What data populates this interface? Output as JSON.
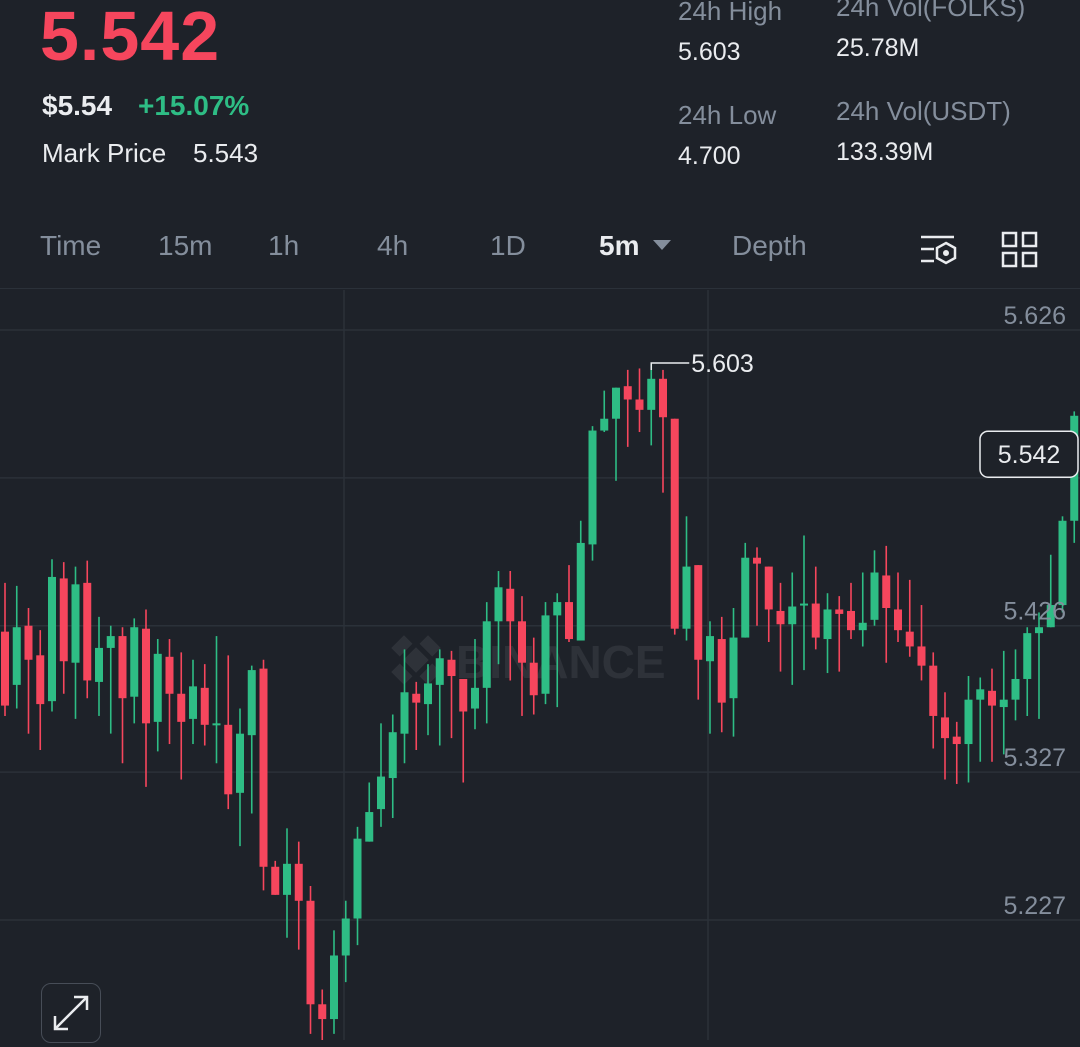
{
  "ticker": {
    "last_price": "5.542",
    "usd_price": "$5.54",
    "change_pct": "+15.07%",
    "mark_price_label": "Mark Price",
    "mark_price": "5.543"
  },
  "stats": {
    "high_label": "24h High",
    "high_value": "5.603",
    "low_label": "24h Low",
    "low_value": "4.700",
    "vol_base_label": "24h Vol(FOLKS)",
    "vol_base_value": "25.78M",
    "vol_quote_label": "24h Vol(USDT)",
    "vol_quote_value": "133.39M"
  },
  "tabs": [
    {
      "label": "Time",
      "active": false
    },
    {
      "label": "15m",
      "active": false
    },
    {
      "label": "1h",
      "active": false
    },
    {
      "label": "4h",
      "active": false
    },
    {
      "label": "1D",
      "active": false
    },
    {
      "label": "5m",
      "active": true
    },
    {
      "label": "Depth",
      "active": false
    }
  ],
  "icons": {
    "indicator_settings": "indicator-settings-icon",
    "layout": "grid-layout-icon",
    "expand": "expand-icon"
  },
  "colors": {
    "up": "#2ebd85",
    "down": "#f6465d",
    "background": "#1e2229",
    "grid": "#2b3139",
    "muted_text": "#848e9c"
  },
  "watermark": "BINANCE",
  "chart_data": {
    "type": "candlestick",
    "interval": "5m",
    "y_ticks": [
      "5.626",
      "5.426",
      "5.327",
      "5.227"
    ],
    "current_price_label": "5.542",
    "high_marker_label": "5.603",
    "ylim": [
      5.14,
      5.65
    ],
    "grid": true,
    "candles": [
      [
        5.422,
        5.372,
        5.455,
        5.365
      ],
      [
        5.386,
        5.425,
        5.453,
        5.37
      ],
      [
        5.426,
        5.403,
        5.438,
        5.353
      ],
      [
        5.406,
        5.373,
        5.423,
        5.342
      ],
      [
        5.375,
        5.459,
        5.471,
        5.368
      ],
      [
        5.458,
        5.402,
        5.469,
        5.38
      ],
      [
        5.401,
        5.454,
        5.466,
        5.363
      ],
      [
        5.455,
        5.389,
        5.47,
        5.377
      ],
      [
        5.388,
        5.411,
        5.432,
        5.365
      ],
      [
        5.411,
        5.419,
        5.426,
        5.353
      ],
      [
        5.419,
        5.377,
        5.425,
        5.333
      ],
      [
        5.378,
        5.425,
        5.431,
        5.36
      ],
      [
        5.424,
        5.36,
        5.437,
        5.317
      ],
      [
        5.361,
        5.407,
        5.417,
        5.341
      ],
      [
        5.405,
        5.38,
        5.417,
        5.346
      ],
      [
        5.38,
        5.361,
        5.408,
        5.322
      ],
      [
        5.363,
        5.385,
        5.403,
        5.346
      ],
      [
        5.384,
        5.359,
        5.4,
        5.345
      ],
      [
        5.359,
        5.36,
        5.419,
        5.333
      ],
      [
        5.359,
        5.312,
        5.406,
        5.302
      ],
      [
        5.313,
        5.353,
        5.37,
        5.277
      ],
      [
        5.352,
        5.396,
        5.399,
        5.299
      ],
      [
        5.397,
        5.263,
        5.403,
        5.247
      ],
      [
        5.263,
        5.244,
        5.267,
        5.25
      ],
      [
        5.244,
        5.265,
        5.289,
        5.215
      ],
      [
        5.265,
        5.24,
        5.28,
        5.207
      ],
      [
        5.24,
        5.17,
        5.25,
        5.15
      ],
      [
        5.17,
        5.16,
        5.18,
        5.14
      ],
      [
        5.16,
        5.203,
        5.22,
        5.15
      ],
      [
        5.203,
        5.228,
        5.24,
        5.185
      ],
      [
        5.228,
        5.282,
        5.29,
        5.21
      ],
      [
        5.28,
        5.3,
        5.32,
        5.28
      ],
      [
        5.302,
        5.324,
        5.36,
        5.29
      ],
      [
        5.323,
        5.354,
        5.366,
        5.296
      ],
      [
        5.353,
        5.381,
        5.41,
        5.333
      ],
      [
        5.38,
        5.374,
        5.388,
        5.342
      ],
      [
        5.373,
        5.387,
        5.4,
        5.352
      ],
      [
        5.386,
        5.404,
        5.41,
        5.345
      ],
      [
        5.403,
        5.392,
        5.409,
        5.35
      ],
      [
        5.39,
        5.368,
        5.388,
        5.32
      ],
      [
        5.37,
        5.384,
        5.417,
        5.356
      ],
      [
        5.384,
        5.429,
        5.442,
        5.36
      ],
      [
        5.429,
        5.452,
        5.463,
        5.4
      ],
      [
        5.451,
        5.429,
        5.463,
        5.389
      ],
      [
        5.429,
        5.401,
        5.446,
        5.365
      ],
      [
        5.401,
        5.379,
        5.418,
        5.366
      ],
      [
        5.38,
        5.433,
        5.442,
        5.373
      ],
      [
        5.433,
        5.442,
        5.448,
        5.371
      ],
      [
        5.442,
        5.417,
        5.467,
        5.415
      ],
      [
        5.416,
        5.482,
        5.497,
        5.417
      ],
      [
        5.481,
        5.558,
        5.561,
        5.47
      ],
      [
        5.558,
        5.566,
        5.585,
        5.557
      ],
      [
        5.566,
        5.587,
        5.58,
        5.524
      ],
      [
        5.588,
        5.579,
        5.599,
        5.547
      ],
      [
        5.579,
        5.572,
        5.6,
        5.557
      ],
      [
        5.572,
        5.593,
        5.603,
        5.548
      ],
      [
        5.593,
        5.567,
        5.599,
        5.516
      ],
      [
        5.566,
        5.424,
        5.55,
        5.42
      ],
      [
        5.424,
        5.466,
        5.5,
        5.416
      ],
      [
        5.467,
        5.403,
        5.463,
        5.376
      ],
      [
        5.402,
        5.419,
        5.429,
        5.353
      ],
      [
        5.417,
        5.374,
        5.432,
        5.354
      ],
      [
        5.377,
        5.418,
        5.438,
        5.351
      ],
      [
        5.418,
        5.472,
        5.482,
        5.43
      ],
      [
        5.472,
        5.468,
        5.479,
        5.426
      ],
      [
        5.466,
        5.437,
        5.461,
        5.415
      ],
      [
        5.436,
        5.427,
        5.455,
        5.395
      ],
      [
        5.427,
        5.439,
        5.462,
        5.386
      ],
      [
        5.44,
        5.441,
        5.487,
        5.396
      ],
      [
        5.441,
        5.418,
        5.466,
        5.41
      ],
      [
        5.417,
        5.437,
        5.448,
        5.394
      ],
      [
        5.437,
        5.434,
        5.446,
        5.395
      ],
      [
        5.436,
        5.423,
        5.455,
        5.417
      ],
      [
        5.423,
        5.428,
        5.462,
        5.412
      ],
      [
        5.43,
        5.462,
        5.477,
        5.426
      ],
      [
        5.46,
        5.438,
        5.48,
        5.401
      ],
      [
        5.437,
        5.423,
        5.462,
        5.415
      ],
      [
        5.422,
        5.412,
        5.457,
        5.405
      ],
      [
        5.412,
        5.399,
        5.44,
        5.389
      ],
      [
        5.399,
        5.365,
        5.408,
        5.343
      ],
      [
        5.364,
        5.35,
        5.381,
        5.322
      ],
      [
        5.351,
        5.346,
        5.361,
        5.319
      ],
      [
        5.346,
        5.376,
        5.392,
        5.32
      ],
      [
        5.376,
        5.383,
        5.391,
        5.334
      ],
      [
        5.382,
        5.372,
        5.397,
        5.334
      ],
      [
        5.371,
        5.376,
        5.409,
        5.339
      ],
      [
        5.376,
        5.39,
        5.41,
        5.362
      ],
      [
        5.39,
        5.421,
        5.425,
        5.365
      ],
      [
        5.421,
        5.425,
        5.435,
        5.363
      ],
      [
        5.425,
        5.44,
        5.474,
        5.427
      ],
      [
        5.44,
        5.497,
        5.5,
        5.435
      ],
      [
        5.497,
        5.568,
        5.571,
        5.482
      ],
      [
        5.568,
        5.554,
        5.599,
        5.545
      ],
      [
        5.554,
        5.583,
        5.577,
        5.543
      ],
      [
        5.581,
        5.542,
        5.596,
        5.53
      ]
    ]
  }
}
